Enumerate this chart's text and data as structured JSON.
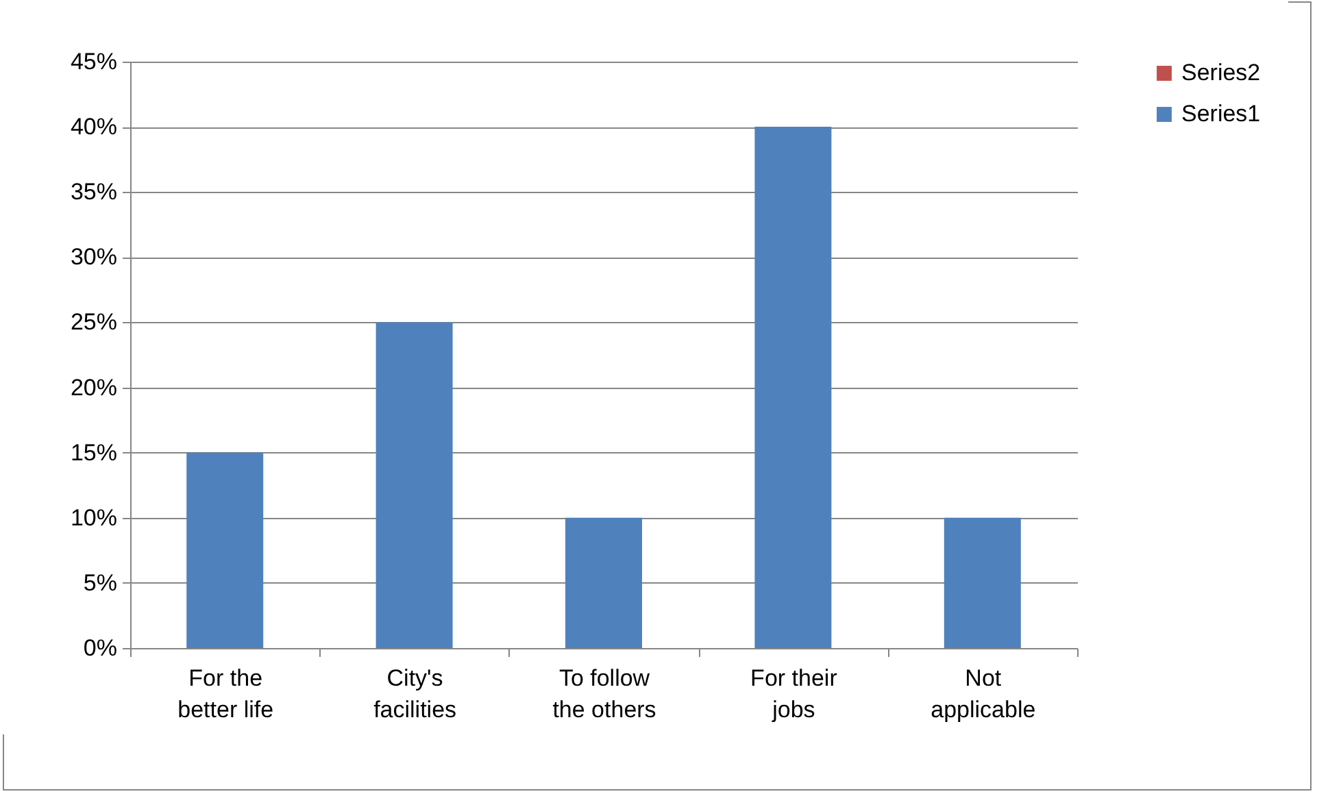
{
  "chart_data": {
    "type": "bar",
    "stacked": true,
    "categories": [
      "For the better life",
      "City's facilities",
      "To follow the others",
      "For their jobs",
      "Not applicable"
    ],
    "series": [
      {
        "name": "Series1",
        "color": "#4f81bd",
        "values": [
          15,
          25,
          10,
          40,
          10
        ]
      },
      {
        "name": "Series2",
        "color": "#c0504d",
        "values": [
          null,
          null,
          null,
          null,
          null
        ]
      }
    ],
    "ylim": [
      0,
      45
    ],
    "yticks": [
      {
        "value": 0,
        "label": "0%"
      },
      {
        "value": 5,
        "label": "5%"
      },
      {
        "value": 10,
        "label": "10%"
      },
      {
        "value": 15,
        "label": "15%"
      },
      {
        "value": 20,
        "label": "20%"
      },
      {
        "value": 25,
        "label": "25%"
      },
      {
        "value": 30,
        "label": "30%"
      },
      {
        "value": 35,
        "label": "35%"
      },
      {
        "value": 40,
        "label": "40%"
      },
      {
        "value": 45,
        "label": "45%"
      }
    ],
    "grid": "y",
    "legend": "right"
  }
}
